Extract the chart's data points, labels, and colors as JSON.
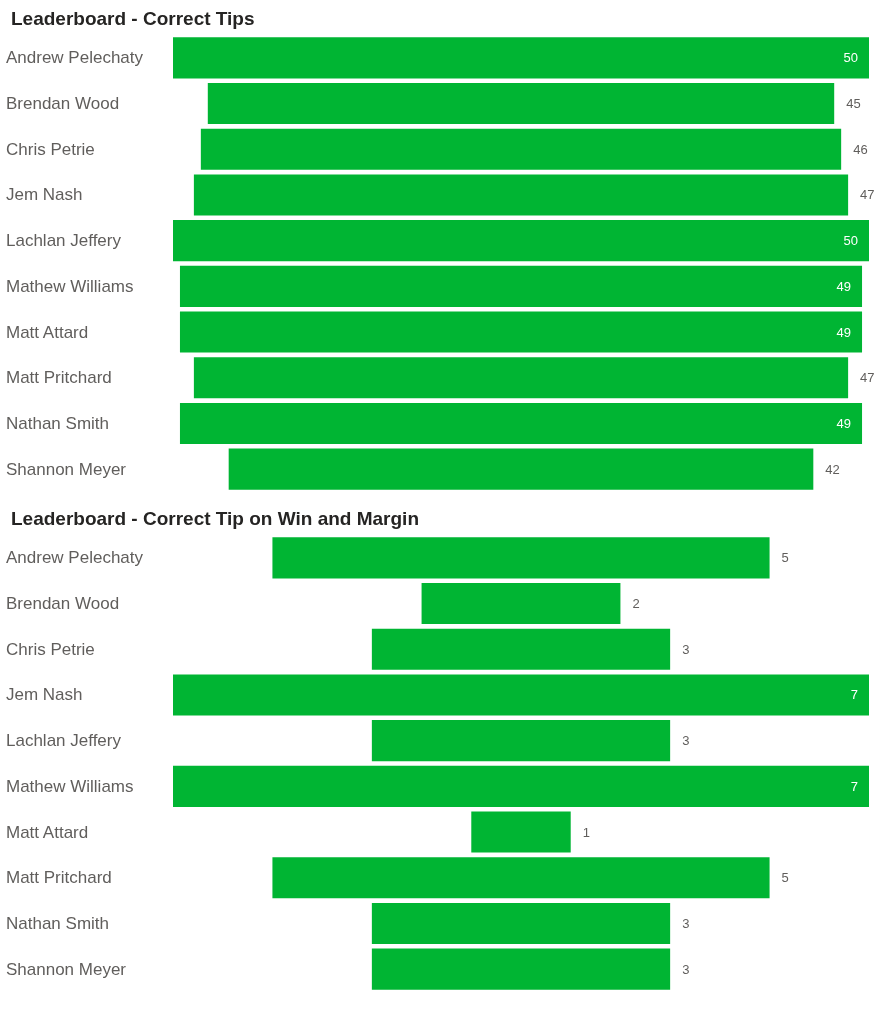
{
  "chart_data": [
    {
      "type": "other",
      "title": "Leaderboard - Correct Tips",
      "categories": [
        "Andrew Pelechaty",
        "Brendan Wood",
        "Chris Petrie",
        "Jem Nash",
        "Lachlan Jeffery",
        "Mathew Williams",
        "Matt Attard",
        "Matt Pritchard",
        "Nathan Smith",
        "Shannon Meyer"
      ],
      "values": [
        50,
        45,
        46,
        47,
        50,
        49,
        49,
        47,
        49,
        42
      ],
      "color": "#00b533",
      "data_labels": true
    },
    {
      "type": "other",
      "title": "Leaderboard - Correct Tip on Win and Margin",
      "categories": [
        "Andrew Pelechaty",
        "Brendan Wood",
        "Chris Petrie",
        "Jem Nash",
        "Lachlan Jeffery",
        "Mathew Williams",
        "Matt Attard",
        "Matt Pritchard",
        "Nathan Smith",
        "Shannon Meyer"
      ],
      "values": [
        5,
        2,
        3,
        7,
        3,
        7,
        1,
        5,
        3,
        3
      ],
      "color": "#00b533",
      "data_labels": true
    }
  ]
}
